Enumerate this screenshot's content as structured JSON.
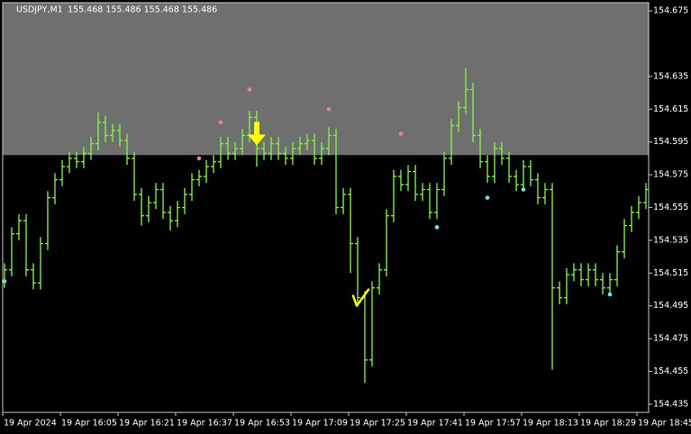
{
  "chart_data": {
    "type": "ohlc",
    "title": "USDJPY,M1",
    "subtitle": "155.468 155.486 155.468 155.486",
    "color": "#7dfc3c",
    "shade_color": "#6f6f6f",
    "shade_above": 154.587,
    "ylim": [
      154.43,
      154.68
    ],
    "yticks": [
      154.675,
      154.635,
      154.615,
      154.595,
      154.575,
      154.555,
      154.535,
      154.515,
      154.495,
      154.475,
      154.455,
      154.435
    ],
    "xlabels": [
      "19 Apr 2024",
      "19 Apr 16:05",
      "19 Apr 16:21",
      "19 Apr 16:37",
      "19 Apr 16:53",
      "19 Apr 17:09",
      "19 Apr 17:25",
      "19 Apr 17:41",
      "19 Apr 17:57",
      "19 Apr 18:13",
      "19 Apr 18:29",
      "19 Apr 18:45"
    ],
    "bars": [
      [
        154.51,
        154.521,
        154.506,
        154.517
      ],
      [
        154.517,
        154.543,
        154.513,
        154.539
      ],
      [
        154.539,
        154.551,
        154.535,
        154.547
      ],
      [
        154.547,
        154.551,
        154.513,
        154.517
      ],
      [
        154.517,
        154.521,
        154.505,
        154.509
      ],
      [
        154.509,
        154.537,
        154.505,
        154.533
      ],
      [
        154.533,
        154.565,
        154.529,
        154.561
      ],
      [
        154.561,
        154.576,
        154.557,
        154.572
      ],
      [
        154.572,
        154.584,
        154.568,
        154.58
      ],
      [
        154.58,
        154.589,
        154.576,
        154.585
      ],
      [
        154.585,
        154.589,
        154.579,
        154.583
      ],
      [
        154.583,
        154.592,
        154.579,
        154.588
      ],
      [
        154.588,
        154.598,
        154.584,
        154.594
      ],
      [
        154.594,
        154.613,
        154.59,
        154.607
      ],
      [
        154.607,
        154.611,
        154.595,
        154.599
      ],
      [
        154.599,
        154.606,
        154.595,
        154.602
      ],
      [
        154.602,
        154.606,
        154.592,
        154.596
      ],
      [
        154.596,
        154.6,
        154.581,
        154.585
      ],
      [
        154.585,
        154.589,
        154.559,
        154.563
      ],
      [
        154.563,
        154.567,
        154.544,
        154.55
      ],
      [
        154.55,
        154.562,
        154.546,
        154.558
      ],
      [
        154.558,
        154.57,
        154.554,
        154.566
      ],
      [
        154.566,
        154.57,
        154.548,
        154.552
      ],
      [
        154.552,
        154.556,
        154.541,
        154.547
      ],
      [
        154.547,
        154.559,
        154.543,
        154.555
      ],
      [
        154.555,
        154.567,
        154.551,
        154.563
      ],
      [
        154.563,
        154.576,
        154.559,
        154.572
      ],
      [
        154.572,
        154.578,
        154.568,
        154.574
      ],
      [
        154.574,
        154.584,
        154.57,
        154.58
      ],
      [
        154.58,
        154.587,
        154.576,
        154.583
      ],
      [
        154.583,
        154.598,
        154.579,
        154.594
      ],
      [
        154.594,
        154.598,
        154.584,
        154.588
      ],
      [
        154.588,
        154.595,
        154.584,
        154.591
      ],
      [
        154.591,
        154.603,
        154.587,
        154.599
      ],
      [
        154.599,
        154.614,
        154.595,
        154.61
      ],
      [
        154.61,
        154.614,
        154.58,
        154.591
      ],
      [
        154.591,
        154.595,
        154.584,
        154.588
      ],
      [
        154.588,
        154.598,
        154.584,
        154.594
      ],
      [
        154.594,
        154.598,
        154.584,
        154.588
      ],
      [
        154.588,
        154.592,
        154.581,
        154.585
      ],
      [
        154.585,
        154.595,
        154.581,
        154.591
      ],
      [
        154.591,
        154.598,
        154.587,
        154.594
      ],
      [
        154.594,
        154.6,
        154.59,
        154.596
      ],
      [
        154.596,
        154.6,
        154.581,
        154.585
      ],
      [
        154.585,
        154.595,
        154.581,
        154.591
      ],
      [
        154.591,
        154.604,
        154.587,
        154.599
      ],
      [
        154.599,
        154.603,
        154.551,
        154.555
      ],
      [
        154.555,
        154.567,
        154.551,
        154.563
      ],
      [
        154.563,
        154.567,
        154.515,
        154.533
      ],
      [
        154.533,
        154.537,
        154.496,
        154.5
      ],
      [
        154.5,
        154.504,
        154.448,
        154.462
      ],
      [
        154.462,
        154.51,
        154.458,
        154.506
      ],
      [
        154.506,
        154.521,
        154.502,
        154.517
      ],
      [
        154.517,
        154.554,
        154.513,
        154.55
      ],
      [
        154.55,
        154.578,
        154.546,
        154.574
      ],
      [
        154.574,
        154.578,
        154.565,
        154.569
      ],
      [
        154.569,
        154.581,
        154.565,
        154.577
      ],
      [
        154.577,
        154.581,
        154.559,
        154.563
      ],
      [
        154.563,
        154.57,
        154.559,
        154.566
      ],
      [
        154.566,
        154.57,
        154.548,
        154.552
      ],
      [
        154.552,
        154.57,
        154.548,
        154.566
      ],
      [
        154.566,
        154.589,
        154.562,
        154.585
      ],
      [
        154.585,
        154.609,
        154.581,
        154.605
      ],
      [
        154.605,
        154.62,
        154.601,
        154.616
      ],
      [
        154.616,
        154.64,
        154.612,
        154.627
      ],
      [
        154.627,
        154.631,
        154.595,
        154.599
      ],
      [
        154.599,
        154.603,
        154.579,
        154.583
      ],
      [
        154.583,
        154.587,
        154.57,
        154.574
      ],
      [
        154.574,
        154.595,
        154.57,
        154.591
      ],
      [
        154.591,
        154.595,
        154.581,
        154.585
      ],
      [
        154.585,
        154.589,
        154.57,
        154.574
      ],
      [
        154.574,
        154.578,
        154.565,
        154.569
      ],
      [
        154.569,
        154.584,
        154.565,
        154.58
      ],
      [
        154.58,
        154.584,
        154.568,
        154.572
      ],
      [
        154.572,
        154.576,
        154.557,
        154.561
      ],
      [
        154.561,
        154.57,
        154.557,
        154.566
      ],
      [
        154.566,
        154.57,
        154.456,
        154.506
      ],
      [
        154.506,
        154.51,
        154.496,
        154.5
      ],
      [
        154.5,
        154.518,
        154.496,
        154.514
      ],
      [
        154.514,
        154.521,
        154.51,
        154.517
      ],
      [
        154.517,
        154.521,
        154.507,
        154.511
      ],
      [
        154.511,
        154.521,
        154.507,
        154.517
      ],
      [
        154.517,
        154.521,
        154.507,
        154.511
      ],
      [
        154.511,
        154.515,
        154.502,
        154.506
      ],
      [
        154.506,
        154.515,
        154.502,
        154.511
      ],
      [
        154.511,
        154.532,
        154.507,
        154.528
      ],
      [
        154.528,
        154.548,
        154.524,
        154.544
      ],
      [
        154.544,
        154.556,
        154.54,
        154.552
      ],
      [
        154.552,
        154.562,
        154.548,
        154.558
      ],
      [
        154.558,
        154.57,
        154.554,
        154.566
      ]
    ],
    "upper_dots": {
      "color": "#f08080",
      "points": [
        {
          "bar": 27,
          "price": 154.585
        },
        {
          "bar": 30,
          "price": 154.607
        },
        {
          "bar": 34,
          "price": 154.627
        },
        {
          "bar": 45,
          "price": 154.615
        },
        {
          "bar": 55,
          "price": 154.6
        }
      ]
    },
    "lower_dots": {
      "color": "#5fe8f0",
      "points": [
        {
          "bar": 0,
          "price": 154.51
        },
        {
          "bar": 60,
          "price": 154.543
        },
        {
          "bar": 67,
          "price": 154.561
        },
        {
          "bar": 72,
          "price": 154.566
        },
        {
          "bar": 84,
          "price": 154.502
        }
      ]
    },
    "sell_arrow": {
      "color": "#ffff00",
      "bar": 35,
      "price": 154.593
    },
    "buy_check": {
      "color": "#ffff00",
      "bar": 49,
      "price": 154.5
    }
  }
}
